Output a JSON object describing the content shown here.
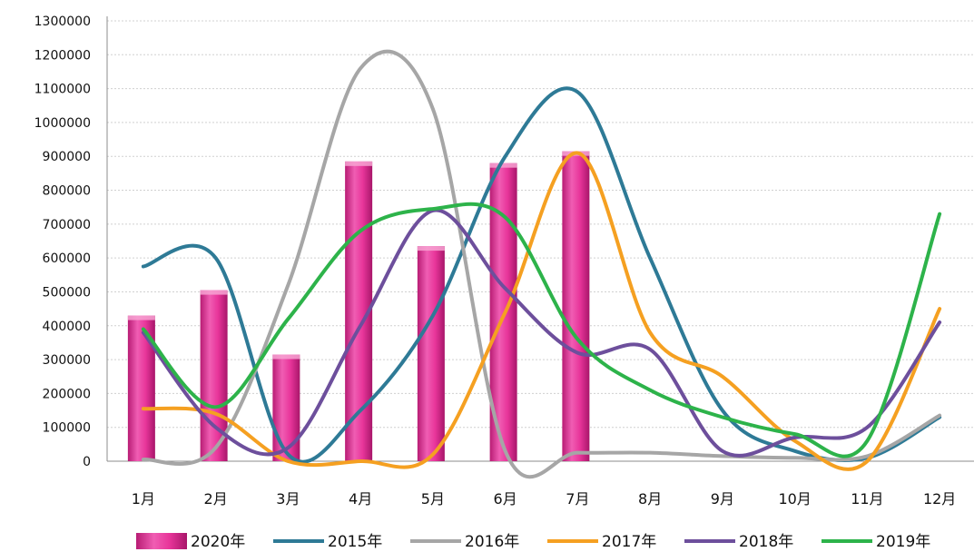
{
  "chart_data": {
    "type": "bar",
    "categories": [
      "1月",
      "2月",
      "3月",
      "4月",
      "5月",
      "6月",
      "7月",
      "8月",
      "9月",
      "10月",
      "11月",
      "12月"
    ],
    "ylim": [
      0,
      1300000
    ],
    "yticks": [
      0,
      100000,
      200000,
      300000,
      400000,
      500000,
      600000,
      700000,
      800000,
      900000,
      1000000,
      1100000,
      1200000,
      1300000
    ],
    "grid": true,
    "legend_position": "bottom",
    "bar_series": {
      "name": "2020年",
      "color": "#e8359a",
      "values": [
        430000,
        505000,
        315000,
        885000,
        635000,
        880000,
        915000,
        null,
        null,
        null,
        null,
        null
      ]
    },
    "line_series": [
      {
        "name": "2015年",
        "color": "#2e7a96",
        "values": [
          575000,
          600000,
          20000,
          150000,
          430000,
          900000,
          1090000,
          600000,
          150000,
          30000,
          10000,
          130000
        ]
      },
      {
        "name": "2016年",
        "color": "#a6a6a6",
        "values": [
          5000,
          40000,
          520000,
          1160000,
          1040000,
          30000,
          25000,
          25000,
          15000,
          10000,
          15000,
          135000
        ]
      },
      {
        "name": "2017年",
        "color": "#f5a021",
        "values": [
          155000,
          140000,
          0,
          0,
          20000,
          440000,
          910000,
          380000,
          250000,
          60000,
          0,
          450000
        ]
      },
      {
        "name": "2018年",
        "color": "#6d4f9c",
        "values": [
          380000,
          100000,
          40000,
          400000,
          740000,
          510000,
          320000,
          330000,
          30000,
          70000,
          100000,
          410000
        ]
      },
      {
        "name": "2019年",
        "color": "#2db34a",
        "values": [
          390000,
          160000,
          420000,
          680000,
          745000,
          720000,
          360000,
          210000,
          130000,
          80000,
          60000,
          730000
        ]
      }
    ]
  }
}
